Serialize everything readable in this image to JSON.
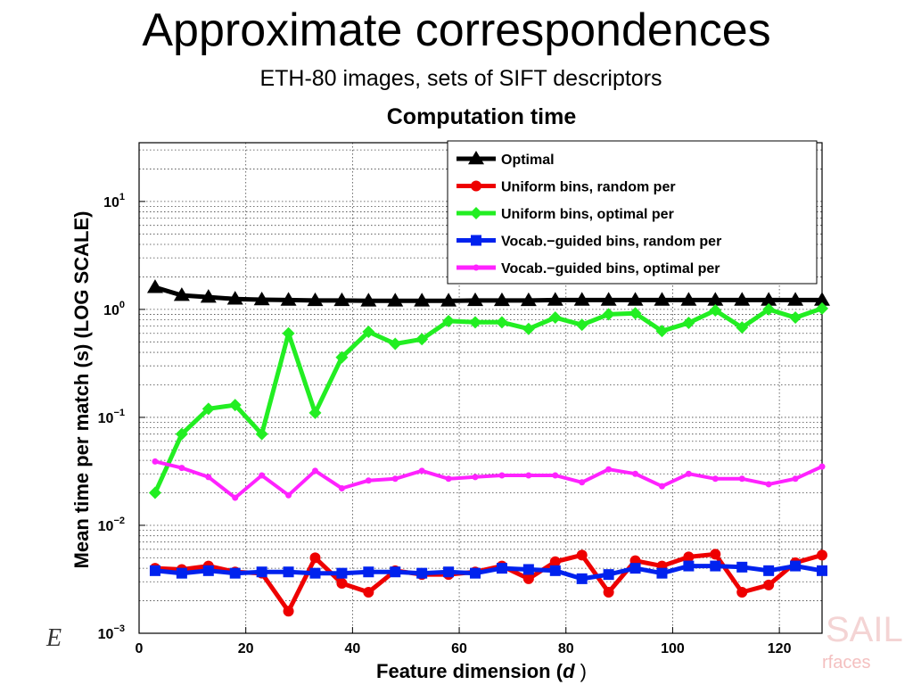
{
  "slide": {
    "title": "Approximate correspondences",
    "subtitle": "ETH-80 images, sets of SIFT descriptors",
    "left_letter": "E",
    "watermark_top": "SAIL",
    "watermark_bottom": "rfaces"
  },
  "chart_data": {
    "type": "line",
    "title": "Computation time",
    "xlabel": "Feature dimension (d )",
    "ylabel": "Mean time per match (s) (LOG SCALE)",
    "xlim": [
      0,
      128
    ],
    "ylim": [
      0.001,
      35
    ],
    "y_scale": "log",
    "grid": true,
    "legend_position": "top-right",
    "x_ticks": [
      "0",
      "20",
      "40",
      "60",
      "80",
      "100",
      "120"
    ],
    "y_ticks": [
      {
        "base": "10",
        "exp": "1"
      },
      {
        "base": "10",
        "exp": "0"
      },
      {
        "base": "10",
        "exp": "−1"
      },
      {
        "base": "10",
        "exp": "−2"
      },
      {
        "base": "10",
        "exp": "−3"
      }
    ],
    "x": [
      3,
      8,
      13,
      18,
      23,
      28,
      33,
      38,
      43,
      48,
      53,
      58,
      63,
      68,
      73,
      78,
      83,
      88,
      93,
      98,
      103,
      108,
      113,
      118,
      123,
      128
    ],
    "series": [
      {
        "name": "Optimal",
        "color": "#000000",
        "marker": "triangle",
        "values": [
          1.6,
          1.35,
          1.3,
          1.25,
          1.23,
          1.22,
          1.21,
          1.21,
          1.2,
          1.2,
          1.2,
          1.2,
          1.21,
          1.21,
          1.21,
          1.22,
          1.22,
          1.22,
          1.22,
          1.22,
          1.22,
          1.22,
          1.22,
          1.22,
          1.22,
          1.22
        ]
      },
      {
        "name": "Uniform bins, random per",
        "color": "#ee0000",
        "marker": "circle",
        "values": [
          0.004,
          0.0039,
          0.0042,
          0.0037,
          0.0036,
          0.0016,
          0.005,
          0.0029,
          0.0024,
          0.0038,
          0.0035,
          0.0035,
          0.0037,
          0.0042,
          0.0032,
          0.0046,
          0.0053,
          0.0024,
          0.0047,
          0.0042,
          0.0051,
          0.0054,
          0.0024,
          0.0028,
          0.0045,
          0.0053
        ]
      },
      {
        "name": "Uniform bins, optimal per",
        "color": "#22ee22",
        "marker": "diamond",
        "values": [
          0.02,
          0.07,
          0.12,
          0.13,
          0.07,
          0.6,
          0.11,
          0.36,
          0.62,
          0.48,
          0.53,
          0.78,
          0.76,
          0.76,
          0.66,
          0.84,
          0.72,
          0.9,
          0.92,
          0.63,
          0.75,
          0.98,
          0.68,
          1.0,
          0.84,
          1.02
        ]
      },
      {
        "name": "Vocab.−guided bins, random per",
        "color": "#0022ee",
        "marker": "square",
        "values": [
          0.0038,
          0.0036,
          0.0038,
          0.0036,
          0.0037,
          0.0037,
          0.0036,
          0.0036,
          0.0037,
          0.0037,
          0.0036,
          0.0037,
          0.0036,
          0.004,
          0.0039,
          0.0038,
          0.0032,
          0.0035,
          0.004,
          0.0036,
          0.0042,
          0.0042,
          0.0041,
          0.0038,
          0.0042,
          0.0038
        ]
      },
      {
        "name": "Vocab.−guided bins, optimal per",
        "color": "#ff22ff",
        "marker": "dot",
        "values": [
          0.039,
          0.034,
          0.028,
          0.018,
          0.029,
          0.019,
          0.032,
          0.022,
          0.026,
          0.027,
          0.032,
          0.027,
          0.028,
          0.029,
          0.029,
          0.029,
          0.025,
          0.033,
          0.03,
          0.023,
          0.03,
          0.027,
          0.027,
          0.024,
          0.027,
          0.035
        ]
      }
    ]
  }
}
